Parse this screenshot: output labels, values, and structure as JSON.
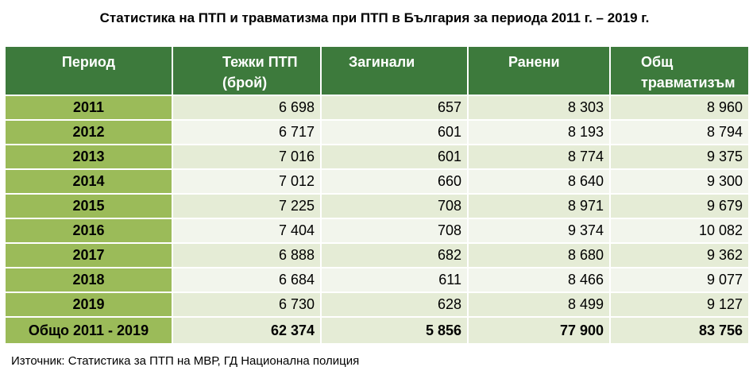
{
  "title": "Статистика на ПТП и травматизма при ПТП в България за периода 2011 г. – 2019 г.",
  "table": {
    "headers": {
      "period": "Период",
      "serious_line1": "Тежки ПТП",
      "serious_line2": "(брой)",
      "killed": "Загинали",
      "injured": "Ранени",
      "total_line1": "Общ",
      "total_line2": "травматизъм"
    },
    "rows": [
      {
        "year": "2011",
        "serious": "6 698",
        "killed": "657",
        "injured": "8 303",
        "total": "8 960"
      },
      {
        "year": "2012",
        "serious": "6 717",
        "killed": "601",
        "injured": "8 193",
        "total": "8 794"
      },
      {
        "year": "2013",
        "serious": "7 016",
        "killed": "601",
        "injured": "8 774",
        "total": "9 375"
      },
      {
        "year": "2014",
        "serious": "7 012",
        "killed": "660",
        "injured": "8 640",
        "total": "9 300"
      },
      {
        "year": "2015",
        "serious": "7 225",
        "killed": "708",
        "injured": "8 971",
        "total": "9 679"
      },
      {
        "year": "2016",
        "serious": "7 404",
        "killed": "708",
        "injured": "9 374",
        "total": "10 082"
      },
      {
        "year": "2017",
        "serious": "6 888",
        "killed": "682",
        "injured": "8 680",
        "total": "9 362"
      },
      {
        "year": "2018",
        "serious": "6 684",
        "killed": "611",
        "injured": "8 466",
        "total": "9 077"
      },
      {
        "year": "2019",
        "serious": "6 730",
        "killed": "628",
        "injured": "8 499",
        "total": "9 127"
      }
    ],
    "totals": {
      "label": "Общо 2011 - 2019",
      "serious": "62 374",
      "killed": "5 856",
      "injured": "77 900",
      "total": "83 756"
    }
  },
  "source": "Източник: Статистика за ПТП на МВР, ГД Национална полиция",
  "colors": {
    "header_bg": "#3d7a3c",
    "year_bg": "#9bbb59",
    "row_light": "#e5ecd6",
    "row_lighter": "#f2f5ec"
  }
}
